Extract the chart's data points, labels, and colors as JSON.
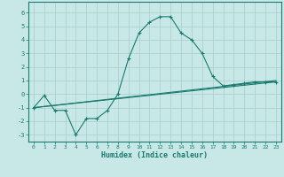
{
  "xlabel": "Humidex (Indice chaleur)",
  "curve_x": [
    0,
    1,
    2,
    3,
    4,
    5,
    6,
    7,
    8,
    9,
    10,
    11,
    12,
    13,
    14,
    15,
    16,
    17,
    18,
    19,
    20,
    21,
    22,
    23
  ],
  "curve_y": [
    -1.0,
    -0.1,
    -1.2,
    -1.2,
    -3.0,
    -1.8,
    -1.8,
    -1.2,
    0.0,
    2.6,
    4.5,
    5.3,
    5.7,
    5.7,
    4.5,
    4.0,
    3.0,
    1.3,
    0.6,
    0.7,
    0.8,
    0.9,
    0.9,
    0.9
  ],
  "line2_x": [
    0,
    23
  ],
  "line2_y": [
    -1.0,
    0.9
  ],
  "line3_x": [
    0,
    23
  ],
  "line3_y": [
    -1.0,
    1.0
  ],
  "color": "#1a7a6e",
  "bg_color": "#c8e8e8",
  "grid_color": "#a8cccc",
  "ylim": [
    -3.5,
    6.8
  ],
  "xlim": [
    -0.5,
    23.5
  ],
  "yticks": [
    -3,
    -2,
    -1,
    0,
    1,
    2,
    3,
    4,
    5,
    6
  ],
  "xticks": [
    0,
    1,
    2,
    3,
    4,
    5,
    6,
    7,
    8,
    9,
    10,
    11,
    12,
    13,
    14,
    15,
    16,
    17,
    18,
    19,
    20,
    21,
    22,
    23
  ],
  "xlabel_fontsize": 6,
  "tick_fontsize": 4.5,
  "ytick_fontsize": 5
}
